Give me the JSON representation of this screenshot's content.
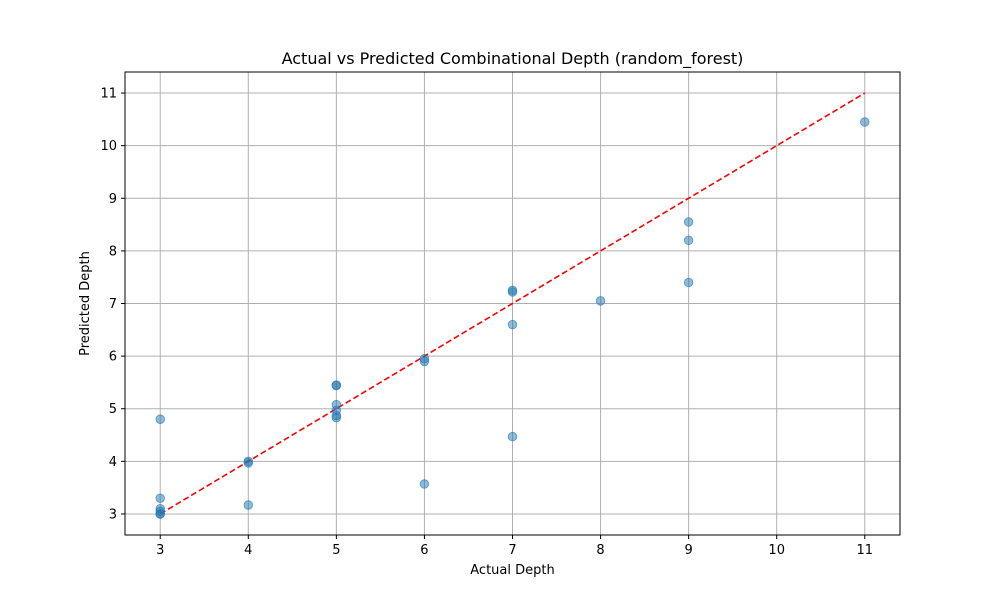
{
  "chart_data": {
    "type": "scatter",
    "title": "Actual vs Predicted Combinational Depth (random_forest)",
    "xlabel": "Actual Depth",
    "ylabel": "Predicted Depth",
    "xlim": [
      2.6,
      11.4
    ],
    "ylim": [
      2.6,
      11.4
    ],
    "xticks": [
      3,
      4,
      5,
      6,
      7,
      8,
      9,
      10,
      11
    ],
    "yticks": [
      3,
      4,
      5,
      6,
      7,
      8,
      9,
      10,
      11
    ],
    "grid": true,
    "point_color": "#1f77b4",
    "point_alpha": 0.5,
    "reference_line": {
      "from": [
        3,
        3
      ],
      "to": [
        11,
        11
      ],
      "color": "#ff0000",
      "style": "dashed"
    },
    "points": [
      {
        "x": 3,
        "y": 4.8
      },
      {
        "x": 3,
        "y": 3.3
      },
      {
        "x": 3,
        "y": 3.1
      },
      {
        "x": 3,
        "y": 3.05
      },
      {
        "x": 3,
        "y": 3.0
      },
      {
        "x": 3,
        "y": 3.0
      },
      {
        "x": 4,
        "y": 4.0
      },
      {
        "x": 4,
        "y": 3.97
      },
      {
        "x": 4,
        "y": 3.17
      },
      {
        "x": 5,
        "y": 5.45
      },
      {
        "x": 5,
        "y": 5.44
      },
      {
        "x": 5,
        "y": 5.08
      },
      {
        "x": 5,
        "y": 4.97
      },
      {
        "x": 5,
        "y": 4.87
      },
      {
        "x": 5,
        "y": 4.83
      },
      {
        "x": 6,
        "y": 5.95
      },
      {
        "x": 6,
        "y": 5.9
      },
      {
        "x": 6,
        "y": 3.57
      },
      {
        "x": 7,
        "y": 7.25
      },
      {
        "x": 7,
        "y": 7.22
      },
      {
        "x": 7,
        "y": 6.6
      },
      {
        "x": 7,
        "y": 4.47
      },
      {
        "x": 8,
        "y": 7.05
      },
      {
        "x": 9,
        "y": 8.55
      },
      {
        "x": 9,
        "y": 8.2
      },
      {
        "x": 9,
        "y": 7.4
      },
      {
        "x": 11,
        "y": 10.45
      }
    ]
  }
}
